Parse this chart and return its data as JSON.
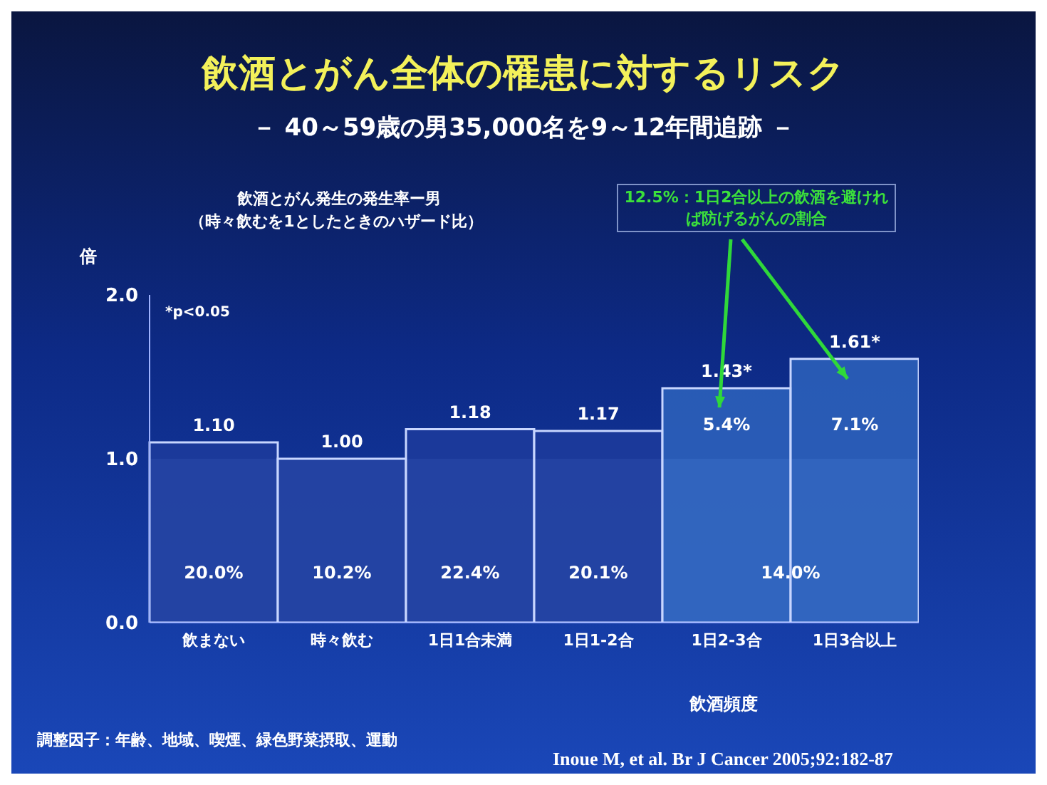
{
  "chart_data": {
    "type": "bar",
    "title": "飲酒とがん全体の罹患に対するリスク",
    "subtitle": "－ 40～59歳の男35,000名を9～12年間追跡 －",
    "xlabel": "飲酒頻度",
    "ylabel": "倍",
    "categories": [
      "飲まない",
      "時々飲む",
      "1日1合未満",
      "1日1-2合",
      "1日2-3合",
      "1日3合以上"
    ],
    "values": [
      1.1,
      1.0,
      1.18,
      1.17,
      1.43,
      1.61
    ],
    "colors": [
      "#1e3c9c",
      "#1e3c9c",
      "#1e3c9c",
      "#1e3c9c",
      "#2f66bf",
      "#2f66bf"
    ],
    "value_labels": [
      "1.10",
      "1.00",
      "1.18",
      "1.17",
      "1.43*",
      "1.61*"
    ],
    "ylim": [
      0,
      2
    ],
    "yticks": [
      {
        "value": 0,
        "label": "0.0"
      },
      {
        "value": 1,
        "label": "1.0"
      },
      {
        "value": 2,
        "label": "2.0"
      }
    ],
    "bands": [
      {
        "axis": "y",
        "from": 0,
        "to": 1,
        "color": "#5a7fd6"
      }
    ],
    "annotations": [
      "飲酒とがん発生の発生率ー男",
      "（時々飲むを1としたときのハザード比）",
      "12.5%：1日2合以上の飲酒を避ければ防げるがんの割合",
      "*p<0.05",
      "調整因子：年齢、地域、喫煙、緑色野菜摂取、運動",
      "Inoue M, et al. Br J Cancer 2005;92:182-87",
      "20.0%",
      "10.2%",
      "22.4%",
      "20.1%",
      "14.0%",
      "5.4%",
      "7.1%"
    ]
  }
}
